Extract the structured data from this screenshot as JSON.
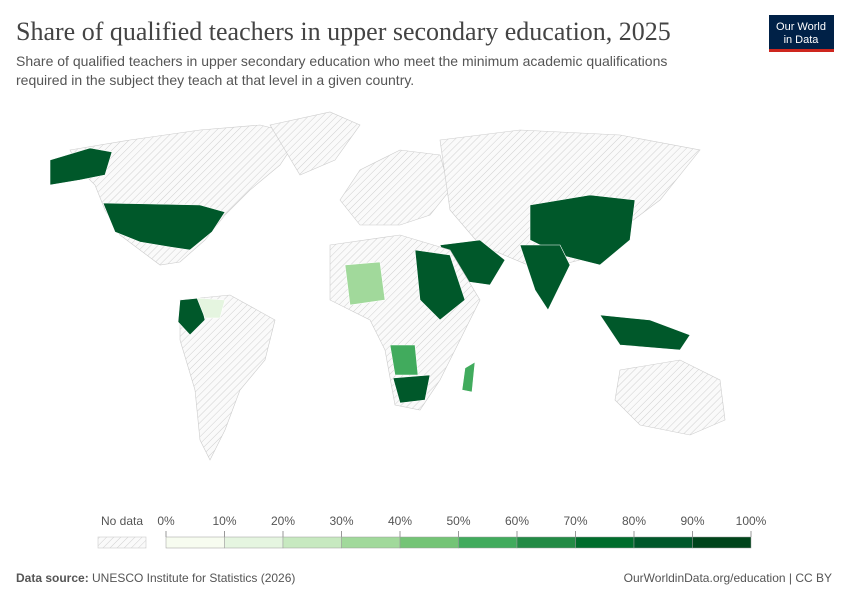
{
  "header": {
    "title": "Share of qualified teachers in upper secondary education, 2025",
    "subtitle_lines": [
      "Share of qualified teachers in upper secondary education who meet the minimum academic qualifications",
      "required in the subject they teach at that level in a given country."
    ]
  },
  "logo": {
    "lines": [
      "Our World",
      "in Data"
    ]
  },
  "legend": {
    "no_data": "No data",
    "ticks": [
      "0%",
      "10%",
      "20%",
      "30%",
      "40%",
      "50%",
      "60%",
      "70%",
      "80%",
      "90%",
      "100%"
    ],
    "colors": [
      "#f7fcf0",
      "#e5f5e0",
      "#c7e9c0",
      "#a1d99b",
      "#74c476",
      "#41ab5d",
      "#238b45",
      "#006d2c",
      "#00582a",
      "#00441b"
    ]
  },
  "footer": {
    "source_label": "Data source:",
    "source": "UNESCO Institute for Statistics (2026)",
    "url": "OurWorldinData.org/education | CC BY"
  }
}
